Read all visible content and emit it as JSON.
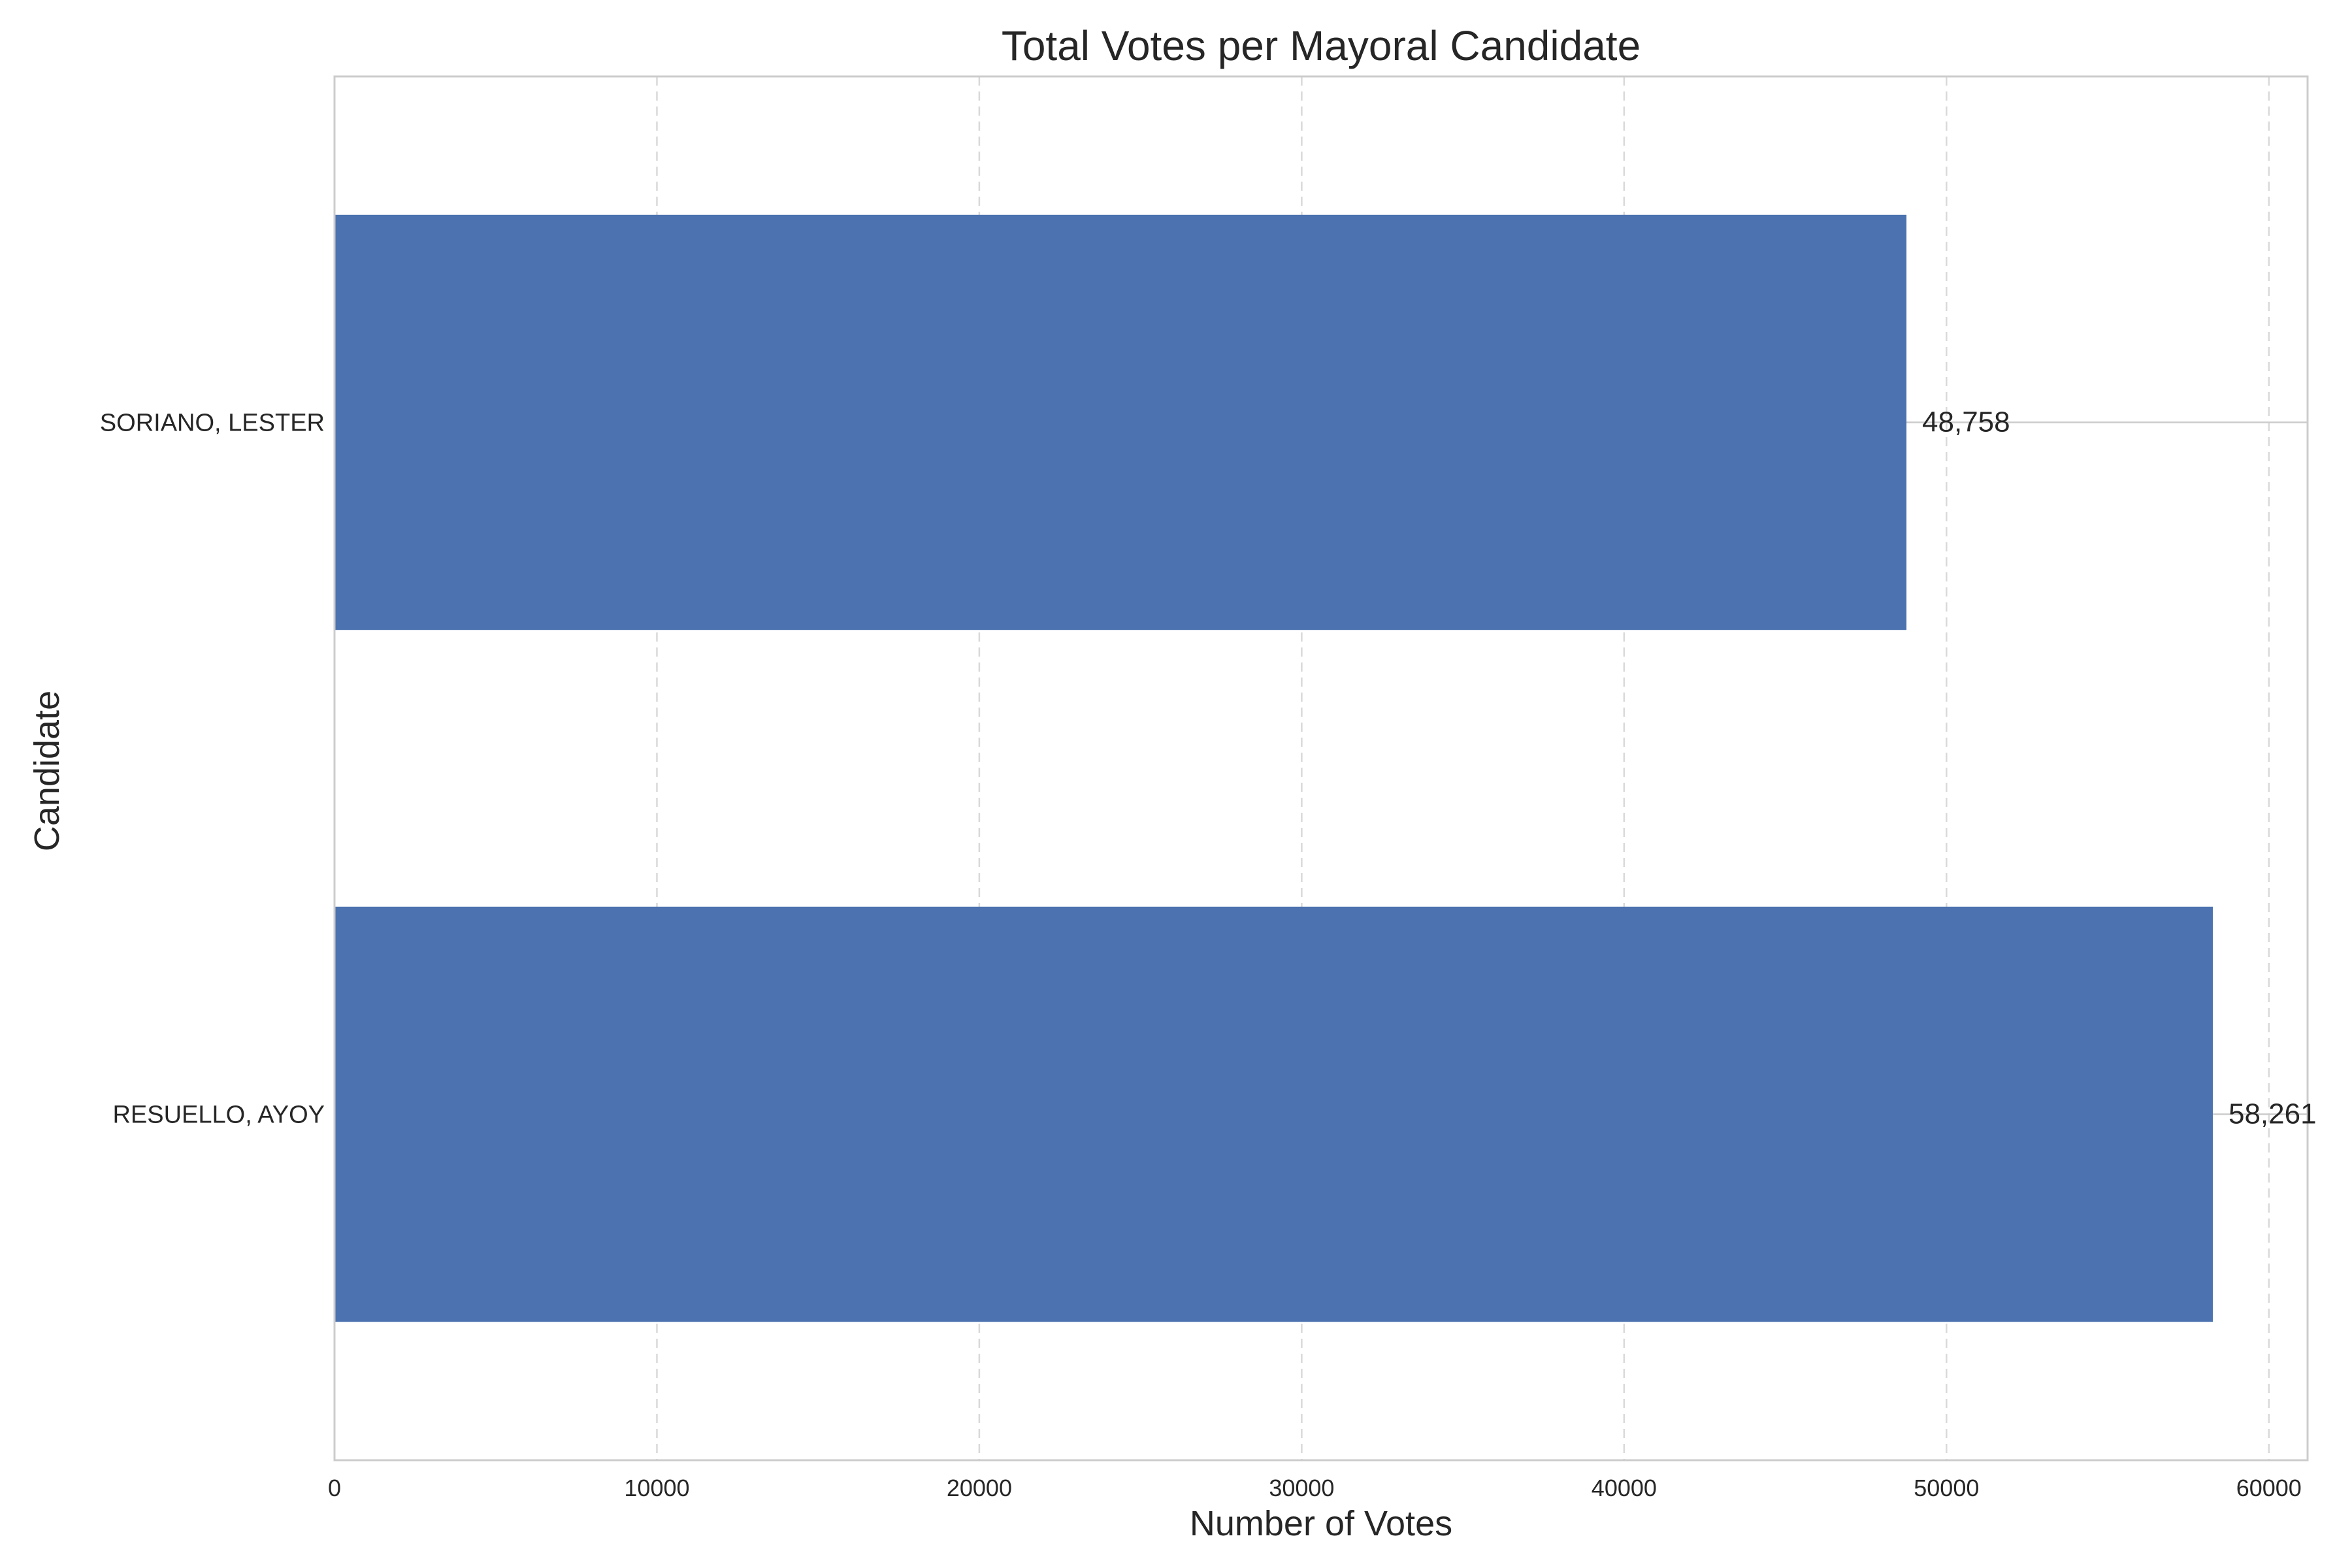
{
  "chart_data": {
    "type": "bar",
    "orientation": "horizontal",
    "title": "Total Votes per Mayoral Candidate",
    "xlabel": "Number of Votes",
    "ylabel": "Candidate",
    "categories": [
      "SORIANO, LESTER",
      "RESUELLO, AYOY"
    ],
    "values": [
      48758,
      58261
    ],
    "value_labels": [
      "48,758",
      "58,261"
    ],
    "xlim": [
      0,
      61200
    ],
    "xticks": [
      0,
      10000,
      20000,
      30000,
      40000,
      50000,
      60000
    ],
    "xtick_labels": [
      "0",
      "10000",
      "20000",
      "30000",
      "40000",
      "50000",
      "60000"
    ],
    "grid": "x-dashed",
    "bar_color": "#4c72b0",
    "grid_color": "#d9d9d9",
    "frame_color": "#cccccc"
  }
}
